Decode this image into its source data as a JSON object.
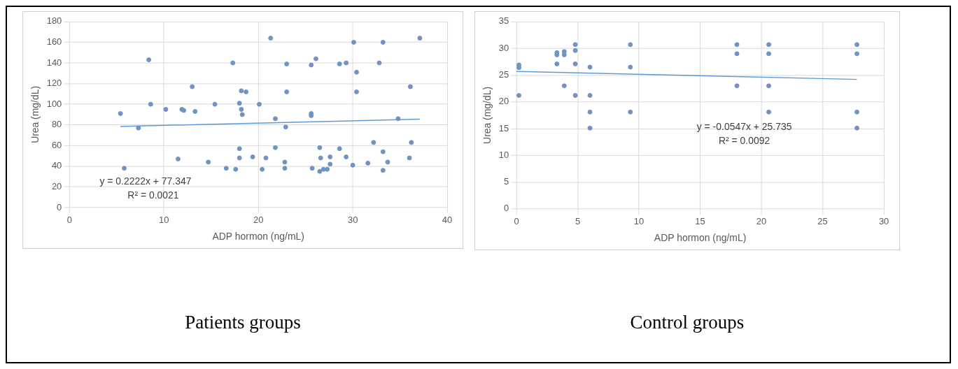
{
  "chart_data": [
    {
      "type": "scatter",
      "title": "Patients groups",
      "xlabel": "ADP hormon (ng/mL)",
      "ylabel": "Urea (mg/dL)",
      "xlim": [
        0,
        40
      ],
      "xticks": [
        0,
        10,
        20,
        30,
        40
      ],
      "ylim": [
        0,
        180
      ],
      "yticks": [
        0,
        20,
        40,
        60,
        80,
        100,
        120,
        140,
        160,
        180
      ],
      "grid": true,
      "legend": false,
      "marker": "circle",
      "annotations": [
        "y = 0.2222x + 77.347",
        "R² = 0.0021"
      ],
      "series": [
        {
          "color": "#7094c2",
          "x": [
            5.4,
            5.8,
            7.3,
            8.4,
            8.6,
            10.2,
            11.5,
            11.9,
            12.1,
            13.0,
            13.3,
            14.7,
            15.4,
            16.6,
            17.3,
            17.6,
            18.0,
            18.0,
            18.2,
            18.7,
            18.0,
            18.2,
            18.3,
            19.4,
            20.8,
            20.4,
            21.3,
            20.1,
            21.8,
            21.8,
            22.9,
            23.0,
            23.0,
            22.8,
            22.8,
            25.6,
            25.6,
            25.6,
            26.1,
            26.5,
            26.6,
            25.7,
            26.5,
            26.9,
            27.3,
            27.6,
            27.6,
            28.6,
            29.3,
            28.6,
            29.3,
            30.1,
            30.4,
            30.4,
            30.0,
            31.6,
            32.2,
            32.8,
            33.2,
            33.2,
            33.7,
            33.2,
            34.8,
            36.1,
            36.2,
            36.0,
            37.1
          ],
          "values": [
            91,
            38,
            77,
            143,
            100,
            95,
            47,
            95,
            94,
            117,
            93,
            44,
            100,
            38,
            140,
            37,
            57,
            48,
            113,
            112,
            101,
            95,
            90,
            49,
            48,
            37,
            164,
            100,
            86,
            58,
            78,
            139,
            112,
            44,
            38,
            91,
            89,
            138,
            144,
            58,
            48,
            38,
            35,
            37,
            37,
            42,
            49,
            139,
            140,
            57,
            49,
            160,
            131,
            112,
            41,
            43,
            63,
            140,
            160,
            54,
            44,
            36,
            86,
            117,
            63,
            48,
            164
          ]
        },
        {
          "type": "line",
          "color": "#5b9bd5",
          "marker": "none",
          "x": [
            5.4,
            37.1
          ],
          "values": [
            78.5,
            85.6
          ]
        }
      ]
    },
    {
      "type": "scatter",
      "title": "Control groups",
      "xlabel": "ADP hormon (ng/mL)",
      "ylabel": "Urea (mg/dL)",
      "xlim": [
        0,
        30
      ],
      "xticks": [
        0,
        5,
        10,
        15,
        20,
        25,
        30
      ],
      "ylim": [
        0,
        35
      ],
      "yticks": [
        0,
        5,
        10,
        15,
        20,
        25,
        30,
        35
      ],
      "grid": true,
      "legend": false,
      "marker": "circle",
      "annotations": [
        "y = -0.0547x + 25.735",
        "R² = 0.0092"
      ],
      "series": [
        {
          "color": "#7094c2",
          "x": [
            0.2,
            0.2,
            0.2,
            3.3,
            3.3,
            3.3,
            3.9,
            3.9,
            3.9,
            4.8,
            4.8,
            4.8,
            4.8,
            6.0,
            6.0,
            6.0,
            6.0,
            9.3,
            9.3,
            9.3,
            18.0,
            18.0,
            18.0,
            20.6,
            20.6,
            20.6,
            20.6,
            27.8,
            27.8,
            27.8,
            27.8
          ],
          "values": [
            26.9,
            26.4,
            21.2,
            29.2,
            28.8,
            27.1,
            29.4,
            28.8,
            23.0,
            30.7,
            29.6,
            27.1,
            21.2,
            26.5,
            21.2,
            18.1,
            15.1,
            30.7,
            26.5,
            18.1,
            30.7,
            29.0,
            23.0,
            30.7,
            29.0,
            23.0,
            18.1,
            30.7,
            29.0,
            18.1,
            15.1
          ]
        },
        {
          "type": "line",
          "color": "#5b9bd5",
          "marker": "none",
          "x": [
            0,
            27.8
          ],
          "values": [
            25.7,
            24.2
          ]
        }
      ]
    }
  ]
}
